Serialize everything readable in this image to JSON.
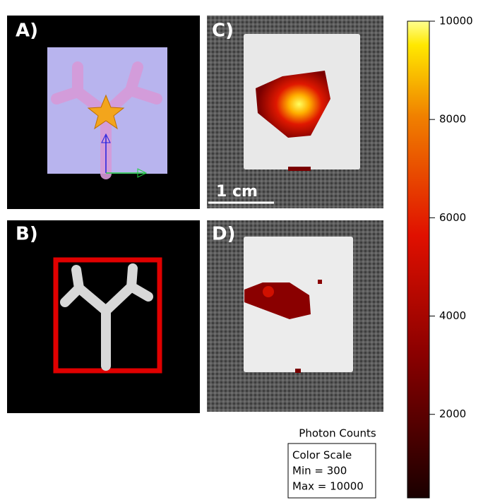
{
  "panels": {
    "a": "A)",
    "b": "B)",
    "c": "C)",
    "d": "D)"
  },
  "scale_bar": "1 cm",
  "colorbar": {
    "title": "Photon Counts",
    "lim": [
      300,
      10000
    ],
    "ticks": [
      2000,
      4000,
      6000,
      8000,
      10000
    ]
  },
  "legend_box": {
    "title": "Color Scale",
    "min": "Min = 300",
    "max": "Max = 10000"
  }
}
